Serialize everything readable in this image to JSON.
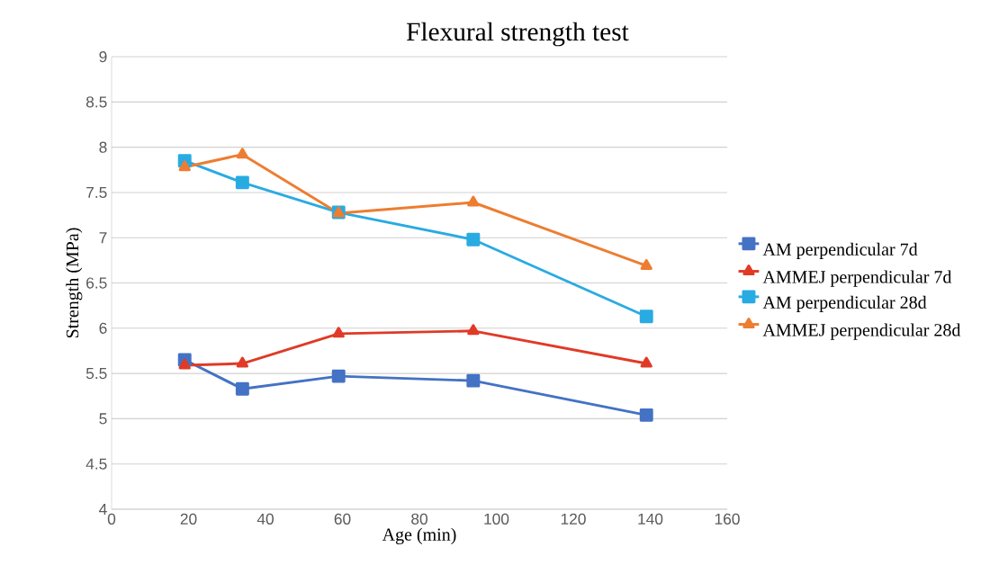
{
  "chart_data": {
    "type": "line",
    "title": "Flexural strength test",
    "xlabel": "Age (min)",
    "ylabel": "Strength (MPa)",
    "xlim": [
      0,
      160
    ],
    "xticks": [
      0,
      20,
      40,
      60,
      80,
      100,
      120,
      140,
      160
    ],
    "ylim": [
      4,
      9
    ],
    "yticks": [
      4,
      4.5,
      5,
      5.5,
      6,
      6.5,
      7,
      7.5,
      8,
      8.5,
      9
    ],
    "grid": "y",
    "legend": "right",
    "line_style": "solid",
    "x": [
      19,
      34,
      59,
      94,
      139
    ],
    "series": [
      {
        "name": "AM perpendicular 7d",
        "color": "#4472c4",
        "marker": "square",
        "values": [
          5.65,
          5.33,
          5.47,
          5.42,
          5.04
        ]
      },
      {
        "name": "AMMEJ perpendicular 7d",
        "color": "#e03a27",
        "marker": "triangle",
        "values": [
          5.59,
          5.61,
          5.94,
          5.97,
          5.61
        ]
      },
      {
        "name": "AM perpendicular 28d",
        "color": "#29abe2",
        "marker": "square",
        "values": [
          7.85,
          7.61,
          7.28,
          6.98,
          6.13
        ]
      },
      {
        "name": "AMMEJ perpendicular 28d",
        "color": "#ed7d31",
        "marker": "triangle",
        "values": [
          7.78,
          7.92,
          7.27,
          7.39,
          6.69
        ]
      }
    ]
  }
}
